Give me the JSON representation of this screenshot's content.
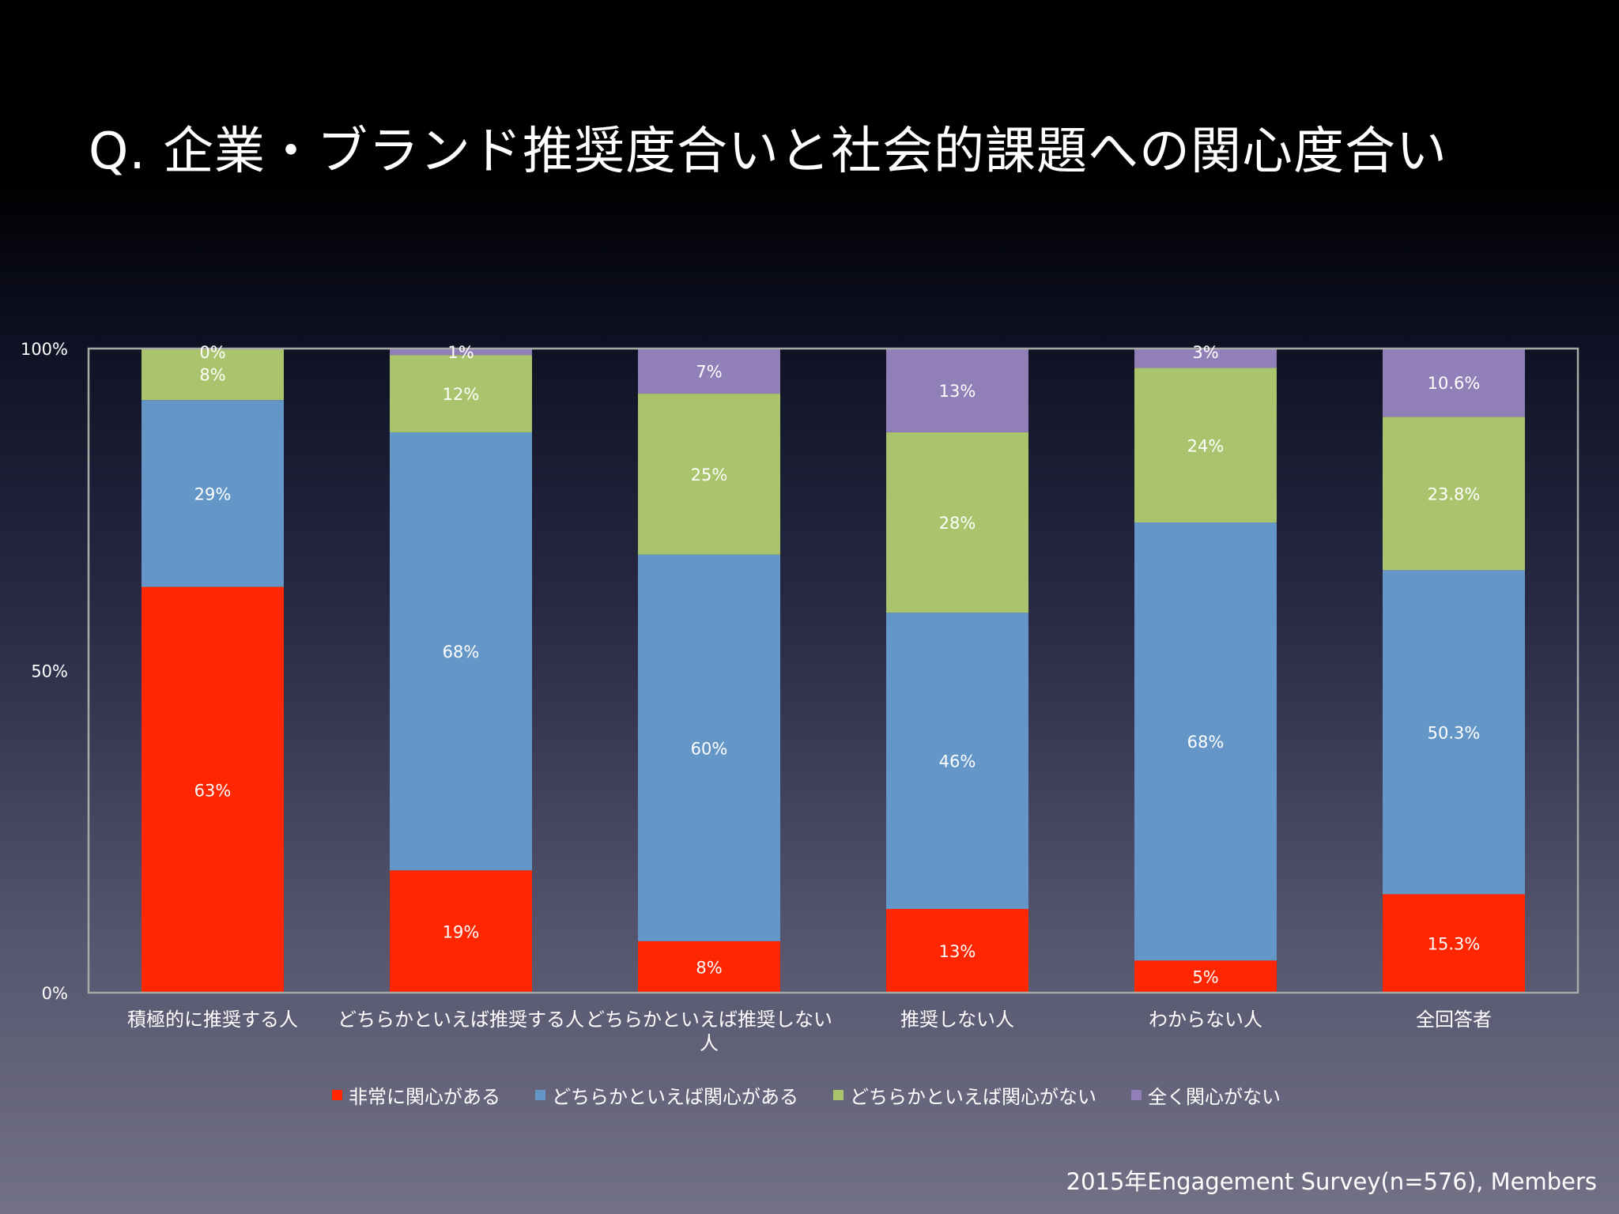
{
  "title": "Q. 企業・ブランド推奨度合いと社会的課題への関心度合い",
  "source": "2015年Engagement Survey(n=576), Members",
  "colors": {
    "red": "#ff2600",
    "blue": "#6496c8",
    "green": "#a9c46c",
    "purple": "#917fb8",
    "axis": "#a7a9a6"
  },
  "chart_data": {
    "type": "bar",
    "stacked": true,
    "normalized": true,
    "ylim": [
      0,
      100
    ],
    "yticks": [
      "0%",
      "50%",
      "100%"
    ],
    "grid": false,
    "legend_position": "bottom",
    "categories": [
      "積極的に推奨する人",
      "どちらかといえば推奨する人",
      "どちらかといえば推奨しない人",
      "推奨しない人",
      "わからない人",
      "全回答者"
    ],
    "series": [
      {
        "name": "非常に関心がある",
        "color": "#ff2600",
        "values": [
          63,
          19,
          8,
          13,
          5,
          15.3
        ],
        "labels": [
          "63%",
          "19%",
          "8%",
          "13%",
          "5%",
          "15.3%"
        ]
      },
      {
        "name": "どちらかといえば関心がある",
        "color": "#6496c8",
        "values": [
          29,
          68,
          60,
          46,
          68,
          50.3
        ],
        "labels": [
          "29%",
          "68%",
          "60%",
          "46%",
          "68%",
          "50.3%"
        ]
      },
      {
        "name": "どちらかといえば関心がない",
        "color": "#a9c46c",
        "values": [
          8,
          12,
          25,
          28,
          24,
          23.8
        ],
        "labels": [
          "8%",
          "12%",
          "25%",
          "28%",
          "24%",
          "23.8%"
        ]
      },
      {
        "name": "全く関心がない",
        "color": "#917fb8",
        "values": [
          0,
          1,
          7,
          13,
          3,
          10.6
        ],
        "labels": [
          "0%",
          "1%",
          "7%",
          "13%",
          "3%",
          "10.6%"
        ]
      }
    ]
  }
}
